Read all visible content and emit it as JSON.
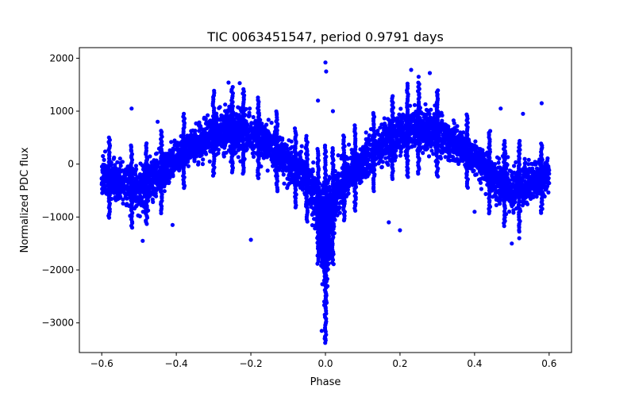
{
  "chart_data": {
    "type": "scatter",
    "title": "TIC 0063451547, period 0.9791 days",
    "xlabel": "Phase",
    "ylabel": "Normalized PDC flux",
    "xlim": [
      -0.66,
      0.66
    ],
    "ylim": [
      -3560,
      2200
    ],
    "x_ticks": [
      -0.6,
      -0.4,
      -0.2,
      0.0,
      0.2,
      0.4,
      0.6
    ],
    "x_tick_labels": [
      "−0.6",
      "−0.4",
      "−0.2",
      "0.0",
      "0.2",
      "0.4",
      "0.6"
    ],
    "y_ticks": [
      -3000,
      -2000,
      -1000,
      0,
      1000,
      2000
    ],
    "y_tick_labels": [
      "−3000",
      "−2000",
      "−1000",
      "0",
      "1000",
      "2000"
    ],
    "grid": false,
    "series": [
      {
        "color": "#0000ff",
        "marker": "circle",
        "envelope": {
          "phase": [
            -0.6,
            -0.55,
            -0.5,
            -0.45,
            -0.4,
            -0.35,
            -0.3,
            -0.25,
            -0.2,
            -0.15,
            -0.1,
            -0.05,
            -0.02,
            0.0,
            0.02,
            0.05,
            0.1,
            0.15,
            0.2,
            0.25,
            0.3,
            0.35,
            0.4,
            0.45,
            0.5,
            0.55,
            0.6
          ],
          "upper": [
            300,
            250,
            200,
            350,
            600,
            900,
            1200,
            1300,
            1200,
            900,
            600,
            350,
            100,
            150,
            100,
            350,
            600,
            900,
            1200,
            1350,
            1200,
            900,
            600,
            350,
            200,
            250,
            300
          ],
          "lower": [
            -700,
            -950,
            -1150,
            -800,
            -350,
            -100,
            -50,
            0,
            -50,
            -200,
            -500,
            -900,
            -1700,
            -3200,
            -1700,
            -900,
            -500,
            -200,
            -50,
            0,
            -50,
            -100,
            -350,
            -800,
            -1150,
            -950,
            -700
          ]
        },
        "outliers": [
          {
            "x": -0.52,
            "y": 1050
          },
          {
            "x": -0.45,
            "y": 800
          },
          {
            "x": -0.26,
            "y": 1540
          },
          {
            "x": -0.23,
            "y": 1530
          },
          {
            "x": -0.2,
            "y": -1430
          },
          {
            "x": -0.15,
            "y": 400
          },
          {
            "x": -0.02,
            "y": 1200
          },
          {
            "x": 0.0,
            "y": 1920
          },
          {
            "x": 0.002,
            "y": 1750
          },
          {
            "x": 0.0,
            "y": -3300
          },
          {
            "x": -0.01,
            "y": -3150
          },
          {
            "x": 0.02,
            "y": 1000
          },
          {
            "x": 0.17,
            "y": -1100
          },
          {
            "x": 0.23,
            "y": 1780
          },
          {
            "x": 0.25,
            "y": 1650
          },
          {
            "x": 0.28,
            "y": 1720
          },
          {
            "x": 0.3,
            "y": 1300
          },
          {
            "x": 0.4,
            "y": -900
          },
          {
            "x": 0.47,
            "y": 1050
          },
          {
            "x": 0.53,
            "y": 950
          },
          {
            "x": 0.58,
            "y": 1150
          },
          {
            "x": 0.5,
            "y": -1500
          },
          {
            "x": 0.52,
            "y": -1400
          },
          {
            "x": -0.58,
            "y": -950
          },
          {
            "x": -0.49,
            "y": -1450
          },
          {
            "x": -0.41,
            "y": -1150
          },
          {
            "x": 0.2,
            "y": -1250
          }
        ],
        "vertical_streak_phases": [
          -0.58,
          -0.52,
          -0.48,
          -0.44,
          -0.38,
          -0.3,
          -0.25,
          -0.22,
          -0.18,
          -0.13,
          -0.08,
          -0.05,
          -0.02,
          0.0,
          0.02,
          0.05,
          0.08,
          0.13,
          0.18,
          0.22,
          0.25,
          0.3,
          0.38,
          0.44,
          0.48,
          0.52,
          0.58
        ]
      }
    ]
  }
}
